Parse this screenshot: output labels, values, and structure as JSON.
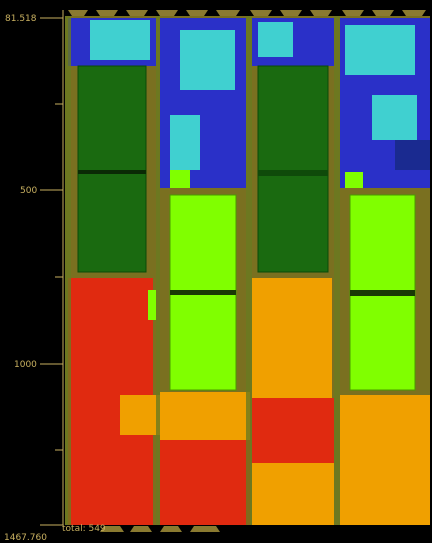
{
  "axis": {
    "labels": [
      "81.518",
      "500",
      "1000",
      "1467.760"
    ]
  },
  "footer": {
    "total": "total: 549"
  }
}
